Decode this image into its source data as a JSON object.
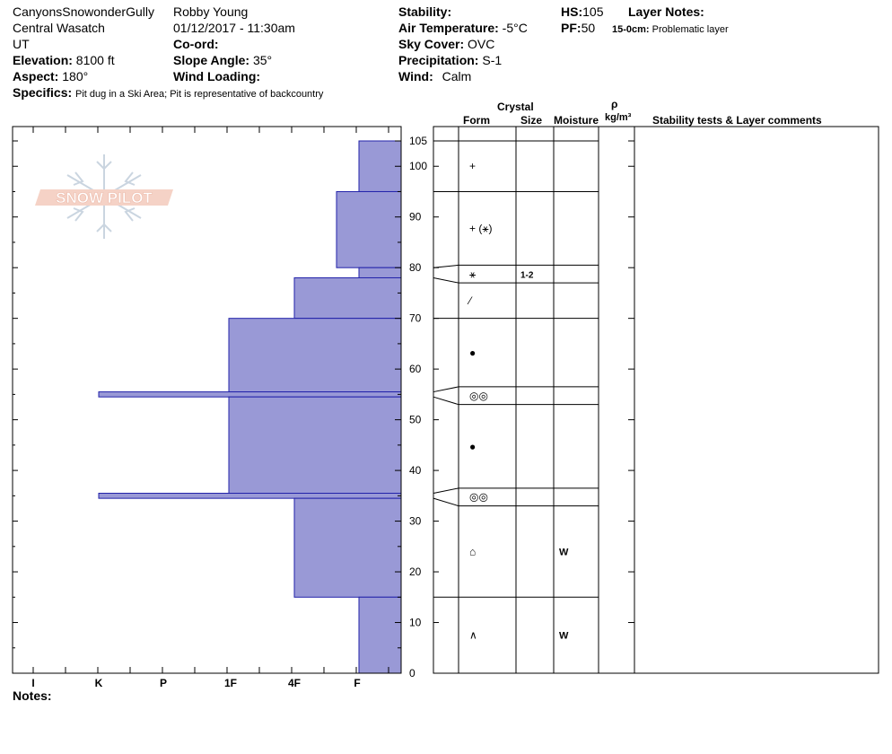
{
  "header": {
    "site": "CanyonsSnowonderGully",
    "range": "Central Wasatch",
    "state": "UT",
    "elevation_label": "Elevation:",
    "elevation_value": "8100 ft",
    "aspect_label": "Aspect:",
    "aspect_value": "180°",
    "specifics_label": "Specifics:",
    "specifics_value": "Pit dug in a Ski Area; Pit is representative of backcountry",
    "observer": "Robby Young",
    "datetime": "01/12/2017 - 11:30am",
    "coord_label": "Co-ord:",
    "slope_label": "Slope Angle:",
    "slope_value": "35°",
    "wind_loading_label": "Wind Loading:",
    "stability_label": "Stability:",
    "air_temp_label": "Air Temperature:",
    "air_temp_value": "-5°C",
    "sky_label": "Sky Cover:",
    "sky_value": "OVC",
    "precip_label": "Precipitation:",
    "precip_value": "S-1",
    "wind_label": "Wind:",
    "wind_value": "Calm",
    "hs_label": "HS:",
    "hs_value": "105",
    "pf_label": "PF:",
    "pf_value": "50",
    "layer_notes_label": "Layer Notes:",
    "layer_note_range": "15-0cm:",
    "layer_note_text": "Problematic layer"
  },
  "logo_text": "SNOW PILOT",
  "table_headers": {
    "crystal": "Crystal",
    "form": "Form",
    "size": "Size",
    "moisture": "Moisture",
    "rho": "ρ",
    "density_unit": "kg/m³",
    "comments": "Stability tests & Layer comments"
  },
  "notes_label": "Notes:",
  "colors": {
    "hardness_fill": "#9999d6",
    "hardness_stroke": "#2222aa",
    "line": "#000000"
  },
  "chart_data": {
    "type": "bar",
    "orientation": "horizontal",
    "hardness_categories": [
      "I",
      "K",
      "P",
      "1F",
      "4F",
      "F"
    ],
    "hardness_scale_note": "bars extend leftward from the right axis; F is softest",
    "depth_axis": {
      "min": 0,
      "max": 105,
      "ticks": [
        0,
        10,
        20,
        30,
        40,
        50,
        60,
        70,
        80,
        90,
        100,
        105
      ]
    },
    "layers": [
      {
        "top": 105,
        "bottom": 95,
        "hardness": "F"
      },
      {
        "top": 95,
        "bottom": 80,
        "hardness": "F+"
      },
      {
        "top": 80,
        "bottom": 78,
        "hardness": "F"
      },
      {
        "top": 78,
        "bottom": 70,
        "hardness": "4F"
      },
      {
        "top": 70,
        "bottom": 55.5,
        "hardness": "1F"
      },
      {
        "top": 55.5,
        "bottom": 54.5,
        "hardness": "K"
      },
      {
        "top": 54.5,
        "bottom": 35.5,
        "hardness": "1F"
      },
      {
        "top": 35.5,
        "bottom": 34.5,
        "hardness": "K"
      },
      {
        "top": 34.5,
        "bottom": 15,
        "hardness": "4F"
      },
      {
        "top": 15,
        "bottom": 0,
        "hardness": "F"
      }
    ],
    "hardness_value_map": {
      "F": 0,
      "F+": 1,
      "4F": 2,
      "1F": 3,
      "P": 4,
      "K": 5,
      "I": 6
    },
    "table_rows": [
      {
        "top": 105,
        "bottom": 95,
        "form": "+",
        "size": "",
        "moisture": ""
      },
      {
        "top": 95,
        "bottom": 80.5,
        "form": "+ (⚹)",
        "size": "",
        "moisture": ""
      },
      {
        "top": 80.5,
        "bottom": 77,
        "form": "⚹",
        "size": "1-2",
        "moisture": ""
      },
      {
        "top": 77,
        "bottom": 70,
        "form": "⁄",
        "size": "",
        "moisture": ""
      },
      {
        "top": 70,
        "bottom": 56.5,
        "form": "●",
        "size": "",
        "moisture": ""
      },
      {
        "top": 56.5,
        "bottom": 53,
        "form": "◎◎",
        "size": "",
        "moisture": ""
      },
      {
        "top": 53,
        "bottom": 36.5,
        "form": "●",
        "size": "",
        "moisture": ""
      },
      {
        "top": 36.5,
        "bottom": 33,
        "form": "◎◎",
        "size": "",
        "moisture": ""
      },
      {
        "top": 33,
        "bottom": 15,
        "form": "⌂",
        "size": "",
        "moisture": "W"
      },
      {
        "top": 15,
        "bottom": 0,
        "form": "∧",
        "size": "",
        "moisture": "W"
      }
    ]
  }
}
